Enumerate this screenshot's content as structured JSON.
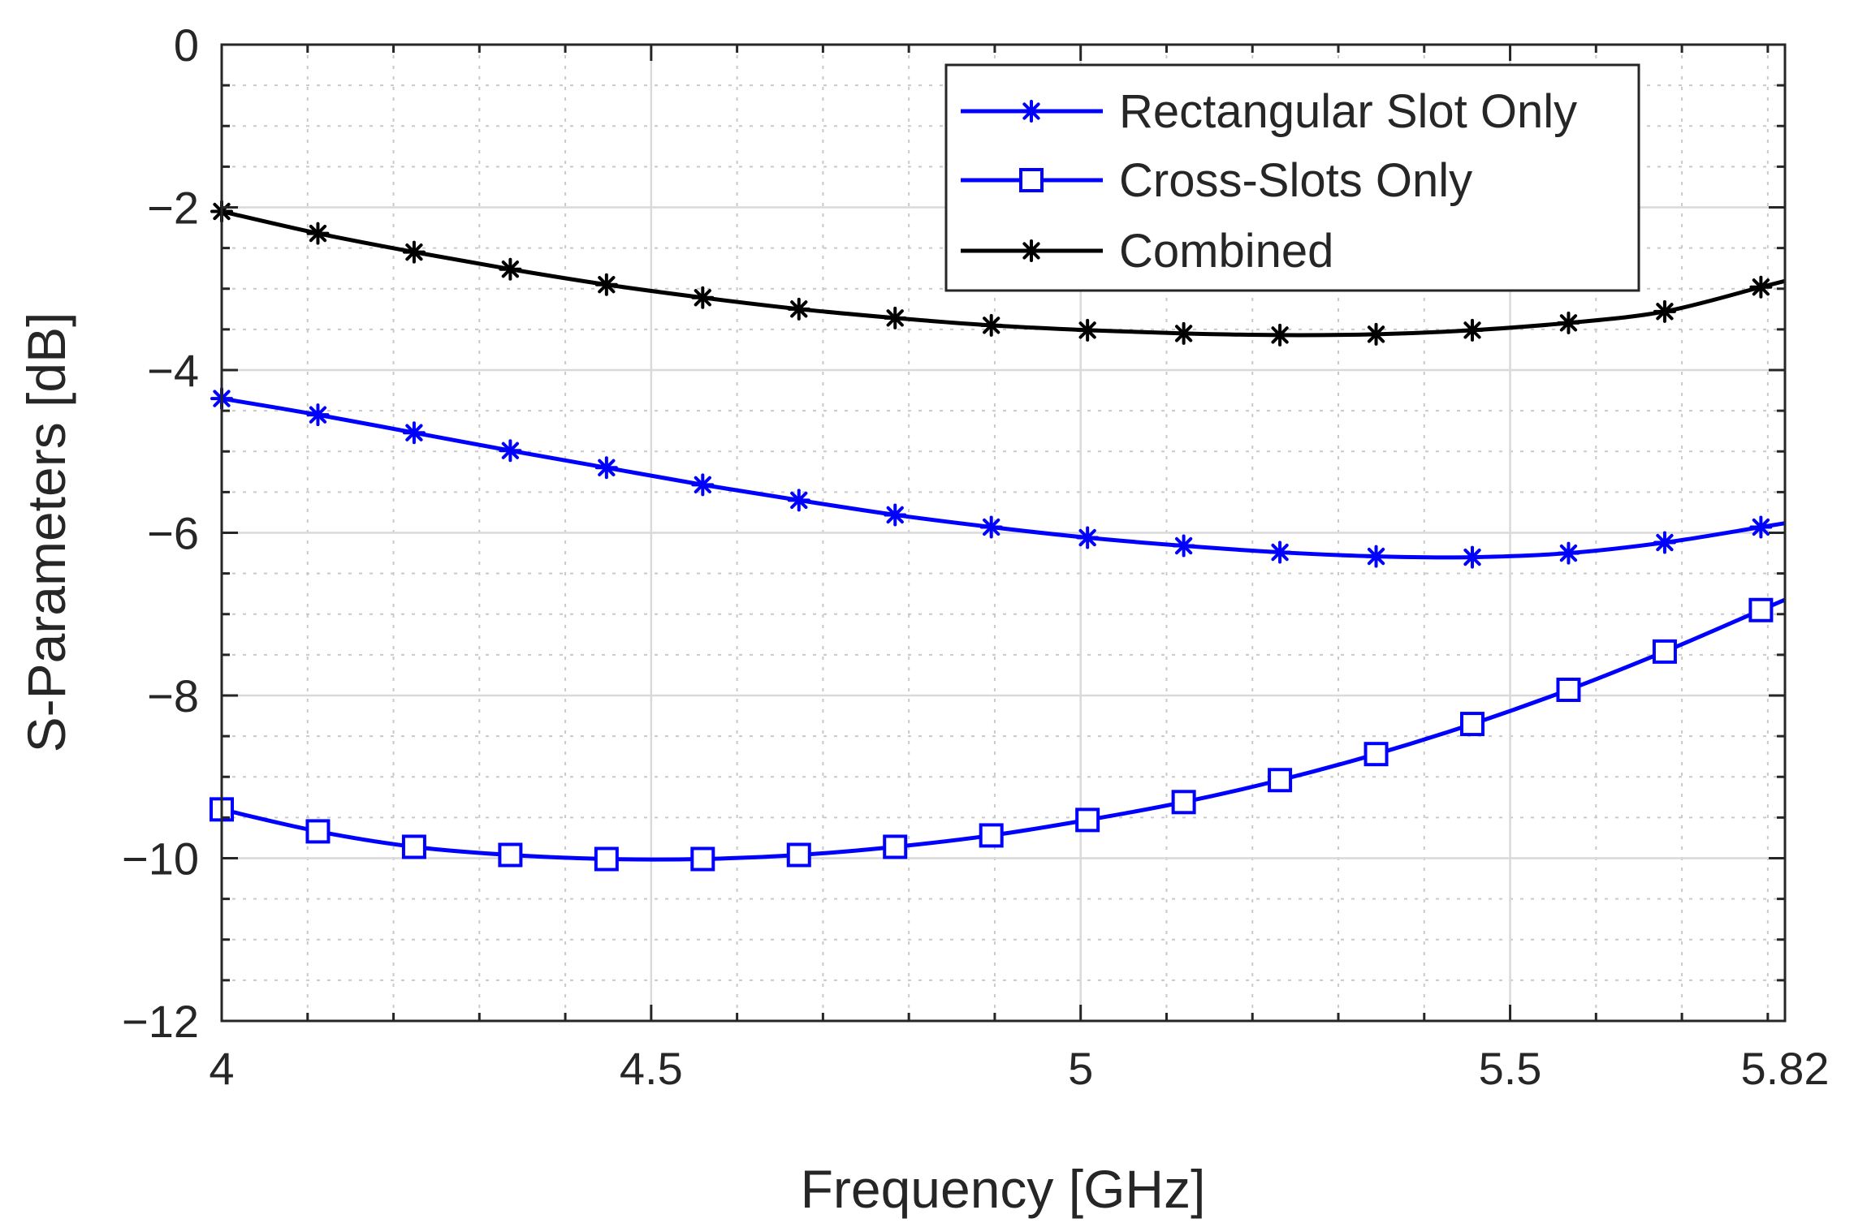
{
  "chart_data": {
    "type": "line",
    "xlabel": "Frequency [GHz]",
    "ylabel": "S-Parameters [dB]",
    "xlim": [
      4,
      5.82
    ],
    "ylim": [
      -12,
      0
    ],
    "xticks": [
      4,
      4.5,
      5,
      5.5,
      5.82
    ],
    "xtick_labels": [
      "4",
      "4.5",
      "5",
      "5.5",
      "5.82"
    ],
    "yticks": [
      0,
      -2,
      -4,
      -6,
      -8,
      -10,
      -12
    ],
    "ytick_labels": [
      "0",
      "−2",
      "−4",
      "−6",
      "−8",
      "−10",
      "−12"
    ],
    "x_minor_step": 0.1,
    "y_minor_step": 0.5,
    "grid": true,
    "legend_position": "top-right",
    "x": [
      4.0,
      4.112,
      4.224,
      4.336,
      4.448,
      4.56,
      4.672,
      4.784,
      4.896,
      5.008,
      5.12,
      5.232,
      5.344,
      5.456,
      5.568,
      5.68,
      5.792
    ],
    "series": [
      {
        "name": "Rectangular Slot Only",
        "color": "#0000ff",
        "marker": "asterisk",
        "values": [
          -4.35,
          -4.55,
          -4.77,
          -4.99,
          -5.2,
          -5.41,
          -5.6,
          -5.78,
          -5.93,
          -6.06,
          -6.16,
          -6.24,
          -6.29,
          -6.3,
          -6.25,
          -6.12,
          -5.93
        ]
      },
      {
        "name": "Cross-Slots Only",
        "color": "#0000ff",
        "marker": "square",
        "values": [
          -9.4,
          -9.67,
          -9.86,
          -9.96,
          -10.01,
          -10.01,
          -9.96,
          -9.86,
          -9.72,
          -9.53,
          -9.31,
          -9.04,
          -8.72,
          -8.35,
          -7.93,
          -7.46,
          -6.95
        ]
      },
      {
        "name": "Combined",
        "color": "#000000",
        "marker": "asterisk",
        "values": [
          -2.05,
          -2.32,
          -2.55,
          -2.76,
          -2.95,
          -3.11,
          -3.25,
          -3.36,
          -3.45,
          -3.51,
          -3.55,
          -3.57,
          -3.56,
          -3.51,
          -3.42,
          -3.28,
          -2.98
        ]
      }
    ]
  }
}
